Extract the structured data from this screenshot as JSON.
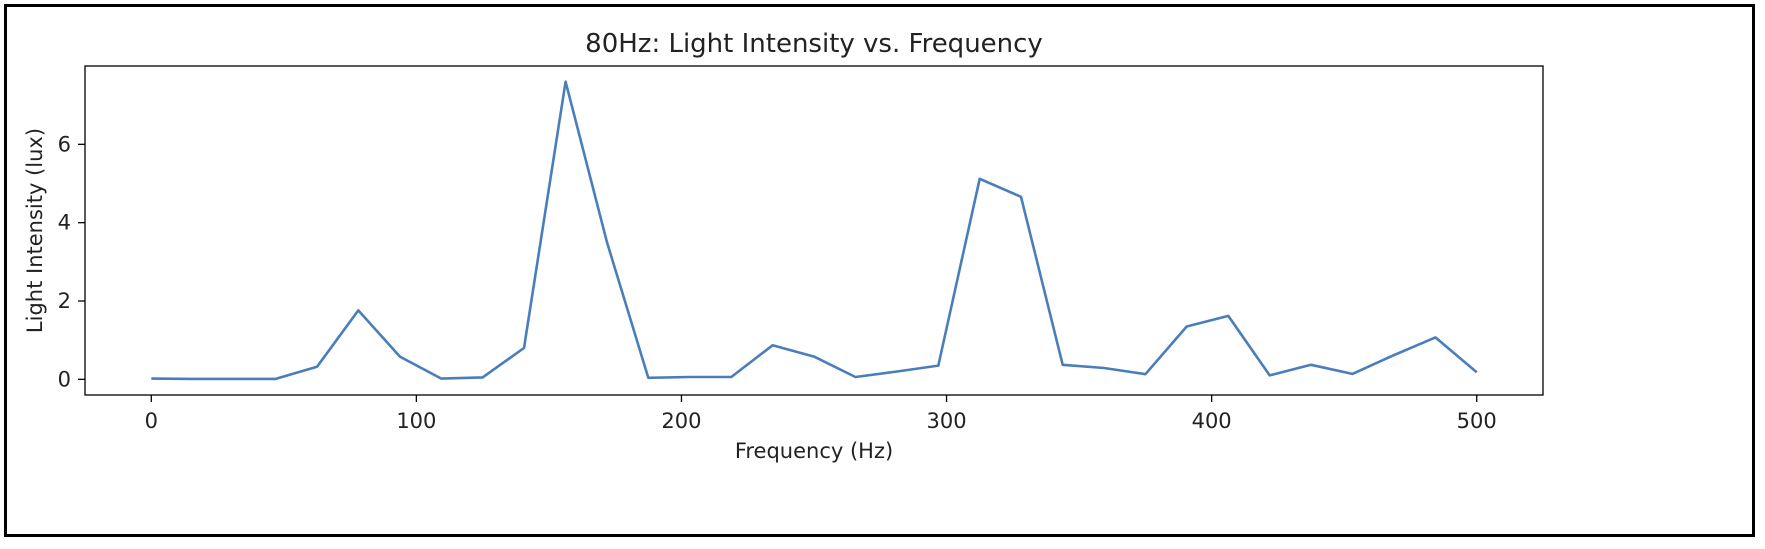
{
  "chart_data": {
    "type": "line",
    "title": "80Hz: Light Intensity vs. Frequency",
    "xlabel": "Frequency (Hz)",
    "ylabel": "Light Intensity (lux)",
    "xlim": [
      -25,
      525
    ],
    "ylim": [
      -0.4,
      8.0
    ],
    "xticks": [
      0,
      100,
      200,
      300,
      400,
      500
    ],
    "yticks": [
      0,
      2,
      4,
      6
    ],
    "grid": false,
    "color": "#4a7ebb",
    "series": [
      {
        "x": [
          0,
          15.6,
          31.3,
          46.9,
          62.5,
          78.1,
          93.8,
          109.4,
          125,
          140.6,
          156.3,
          171.9,
          187.5,
          203.1,
          218.8,
          234.4,
          250,
          265.6,
          281.3,
          296.9,
          312.5,
          328.1,
          343.8,
          359.4,
          375,
          390.6,
          406.3,
          421.9,
          437.5,
          453.1,
          468.8,
          484.4,
          500
        ],
        "y": [
          0.02,
          0.01,
          0.01,
          0.01,
          0.32,
          1.76,
          0.58,
          0.02,
          0.05,
          0.8,
          7.6,
          3.5,
          0.04,
          0.06,
          0.06,
          0.87,
          0.58,
          0.06,
          0.2,
          0.35,
          5.12,
          4.66,
          0.37,
          0.29,
          0.13,
          1.35,
          1.62,
          0.1,
          0.37,
          0.14,
          0.62,
          1.07,
          0.18
        ]
      }
    ]
  }
}
